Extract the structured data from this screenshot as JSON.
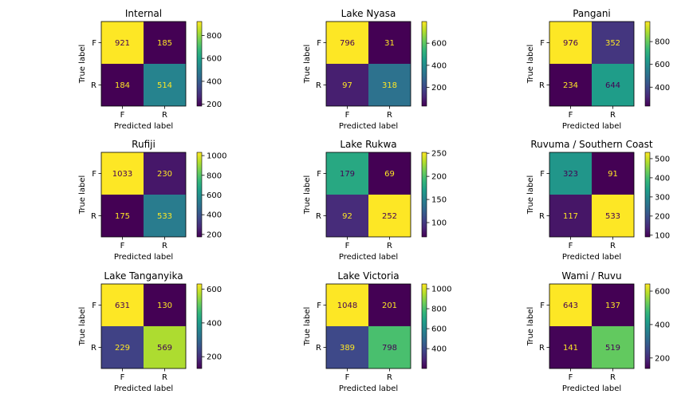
{
  "chart_data": [
    {
      "type": "heatmap",
      "title": "Internal",
      "xlabel": "Predicted label",
      "ylabel": "True label",
      "x_categories": [
        "F",
        "R"
      ],
      "y_categories": [
        "F",
        "R"
      ],
      "values": [
        [
          921,
          185
        ],
        [
          184,
          514
        ]
      ],
      "colorbar": {
        "min": 184,
        "max": 921,
        "ticks": [
          200,
          400,
          600,
          800
        ]
      }
    },
    {
      "type": "heatmap",
      "title": "Lake Nyasa",
      "xlabel": "Predicted label",
      "ylabel": "True label",
      "x_categories": [
        "F",
        "R"
      ],
      "y_categories": [
        "F",
        "R"
      ],
      "values": [
        [
          796,
          31
        ],
        [
          97,
          318
        ]
      ],
      "colorbar": {
        "min": 31,
        "max": 796,
        "ticks": [
          200,
          400,
          600
        ]
      }
    },
    {
      "type": "heatmap",
      "title": "Pangani",
      "xlabel": "Predicted label",
      "ylabel": "True label",
      "x_categories": [
        "F",
        "R"
      ],
      "y_categories": [
        "F",
        "R"
      ],
      "values": [
        [
          976,
          352
        ],
        [
          234,
          644
        ]
      ],
      "colorbar": {
        "min": 234,
        "max": 976,
        "ticks": [
          400,
          600,
          800
        ]
      }
    },
    {
      "type": "heatmap",
      "title": "Rufiji",
      "xlabel": "Predicted label",
      "ylabel": "True label",
      "x_categories": [
        "F",
        "R"
      ],
      "y_categories": [
        "F",
        "R"
      ],
      "values": [
        [
          1033,
          230
        ],
        [
          175,
          533
        ]
      ],
      "colorbar": {
        "min": 175,
        "max": 1033,
        "ticks": [
          200,
          400,
          600,
          800,
          1000
        ]
      }
    },
    {
      "type": "heatmap",
      "title": "Lake Rukwa",
      "xlabel": "Predicted label",
      "ylabel": "True label",
      "x_categories": [
        "F",
        "R"
      ],
      "y_categories": [
        "F",
        "R"
      ],
      "values": [
        [
          179,
          69
        ],
        [
          92,
          252
        ]
      ],
      "colorbar": {
        "min": 69,
        "max": 252,
        "ticks": [
          100,
          150,
          200,
          250
        ]
      }
    },
    {
      "type": "heatmap",
      "title": "Ruvuma / Southern Coast",
      "xlabel": "Predicted label",
      "ylabel": "True label",
      "x_categories": [
        "F",
        "R"
      ],
      "y_categories": [
        "F",
        "R"
      ],
      "values": [
        [
          323,
          91
        ],
        [
          117,
          533
        ]
      ],
      "colorbar": {
        "min": 91,
        "max": 533,
        "ticks": [
          100,
          200,
          300,
          400,
          500
        ]
      }
    },
    {
      "type": "heatmap",
      "title": "Lake Tanganyika",
      "xlabel": "Predicted label",
      "ylabel": "True label",
      "x_categories": [
        "F",
        "R"
      ],
      "y_categories": [
        "F",
        "R"
      ],
      "values": [
        [
          631,
          130
        ],
        [
          229,
          569
        ]
      ],
      "colorbar": {
        "min": 130,
        "max": 631,
        "ticks": [
          200,
          400,
          600
        ]
      }
    },
    {
      "type": "heatmap",
      "title": "Lake Victoria",
      "xlabel": "Predicted label",
      "ylabel": "True label",
      "x_categories": [
        "F",
        "R"
      ],
      "y_categories": [
        "F",
        "R"
      ],
      "values": [
        [
          1048,
          201
        ],
        [
          389,
          798
        ]
      ],
      "colorbar": {
        "min": 201,
        "max": 1048,
        "ticks": [
          400,
          600,
          800,
          1000
        ]
      }
    },
    {
      "type": "heatmap",
      "title": "Wami / Ruvu",
      "xlabel": "Predicted label",
      "ylabel": "True label",
      "x_categories": [
        "F",
        "R"
      ],
      "y_categories": [
        "F",
        "R"
      ],
      "values": [
        [
          643,
          137
        ],
        [
          141,
          519
        ]
      ],
      "colorbar": {
        "min": 137,
        "max": 643,
        "ticks": [
          200,
          400,
          600
        ]
      }
    }
  ],
  "colormap": "viridis",
  "colormap_stops": [
    "#440154",
    "#482878",
    "#3e4989",
    "#31688e",
    "#26828e",
    "#1f9e89",
    "#35b779",
    "#6ece58",
    "#b5de2b",
    "#fde725"
  ]
}
